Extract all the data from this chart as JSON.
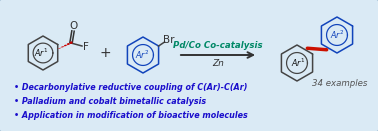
{
  "background_color": "#daeaf5",
  "border_color": "#9ab8d0",
  "bullet_points": [
    "Decarbonylative reductive coupling of C(Ar)-C(Ar)",
    "Palladium and cobalt bimetallic catalysis",
    "Application in modification of bioactive molecules"
  ],
  "bullet_color": "#1a0ecc",
  "bullet_fontsize": 5.8,
  "examples_text": "34 examples",
  "examples_color": "#555555",
  "examples_fontsize": 6.2,
  "arrow_color": "#333333",
  "pd_co_text": "Pd/Co Co-catalysis",
  "pd_co_color": "#008866",
  "zn_text": "Zn",
  "zn_color": "#333333",
  "plus_color": "#333333",
  "br_color": "#333333",
  "f_color": "#333333",
  "o_color": "#333333",
  "ring_color": "#444444",
  "blue_ring_color": "#1144bb",
  "red_bond_color": "#cc1100",
  "ar1_color": "#111111",
  "ar2_color": "#1144bb",
  "carbonyl_color": "#333333",
  "red_dash_color": "#cc0000"
}
